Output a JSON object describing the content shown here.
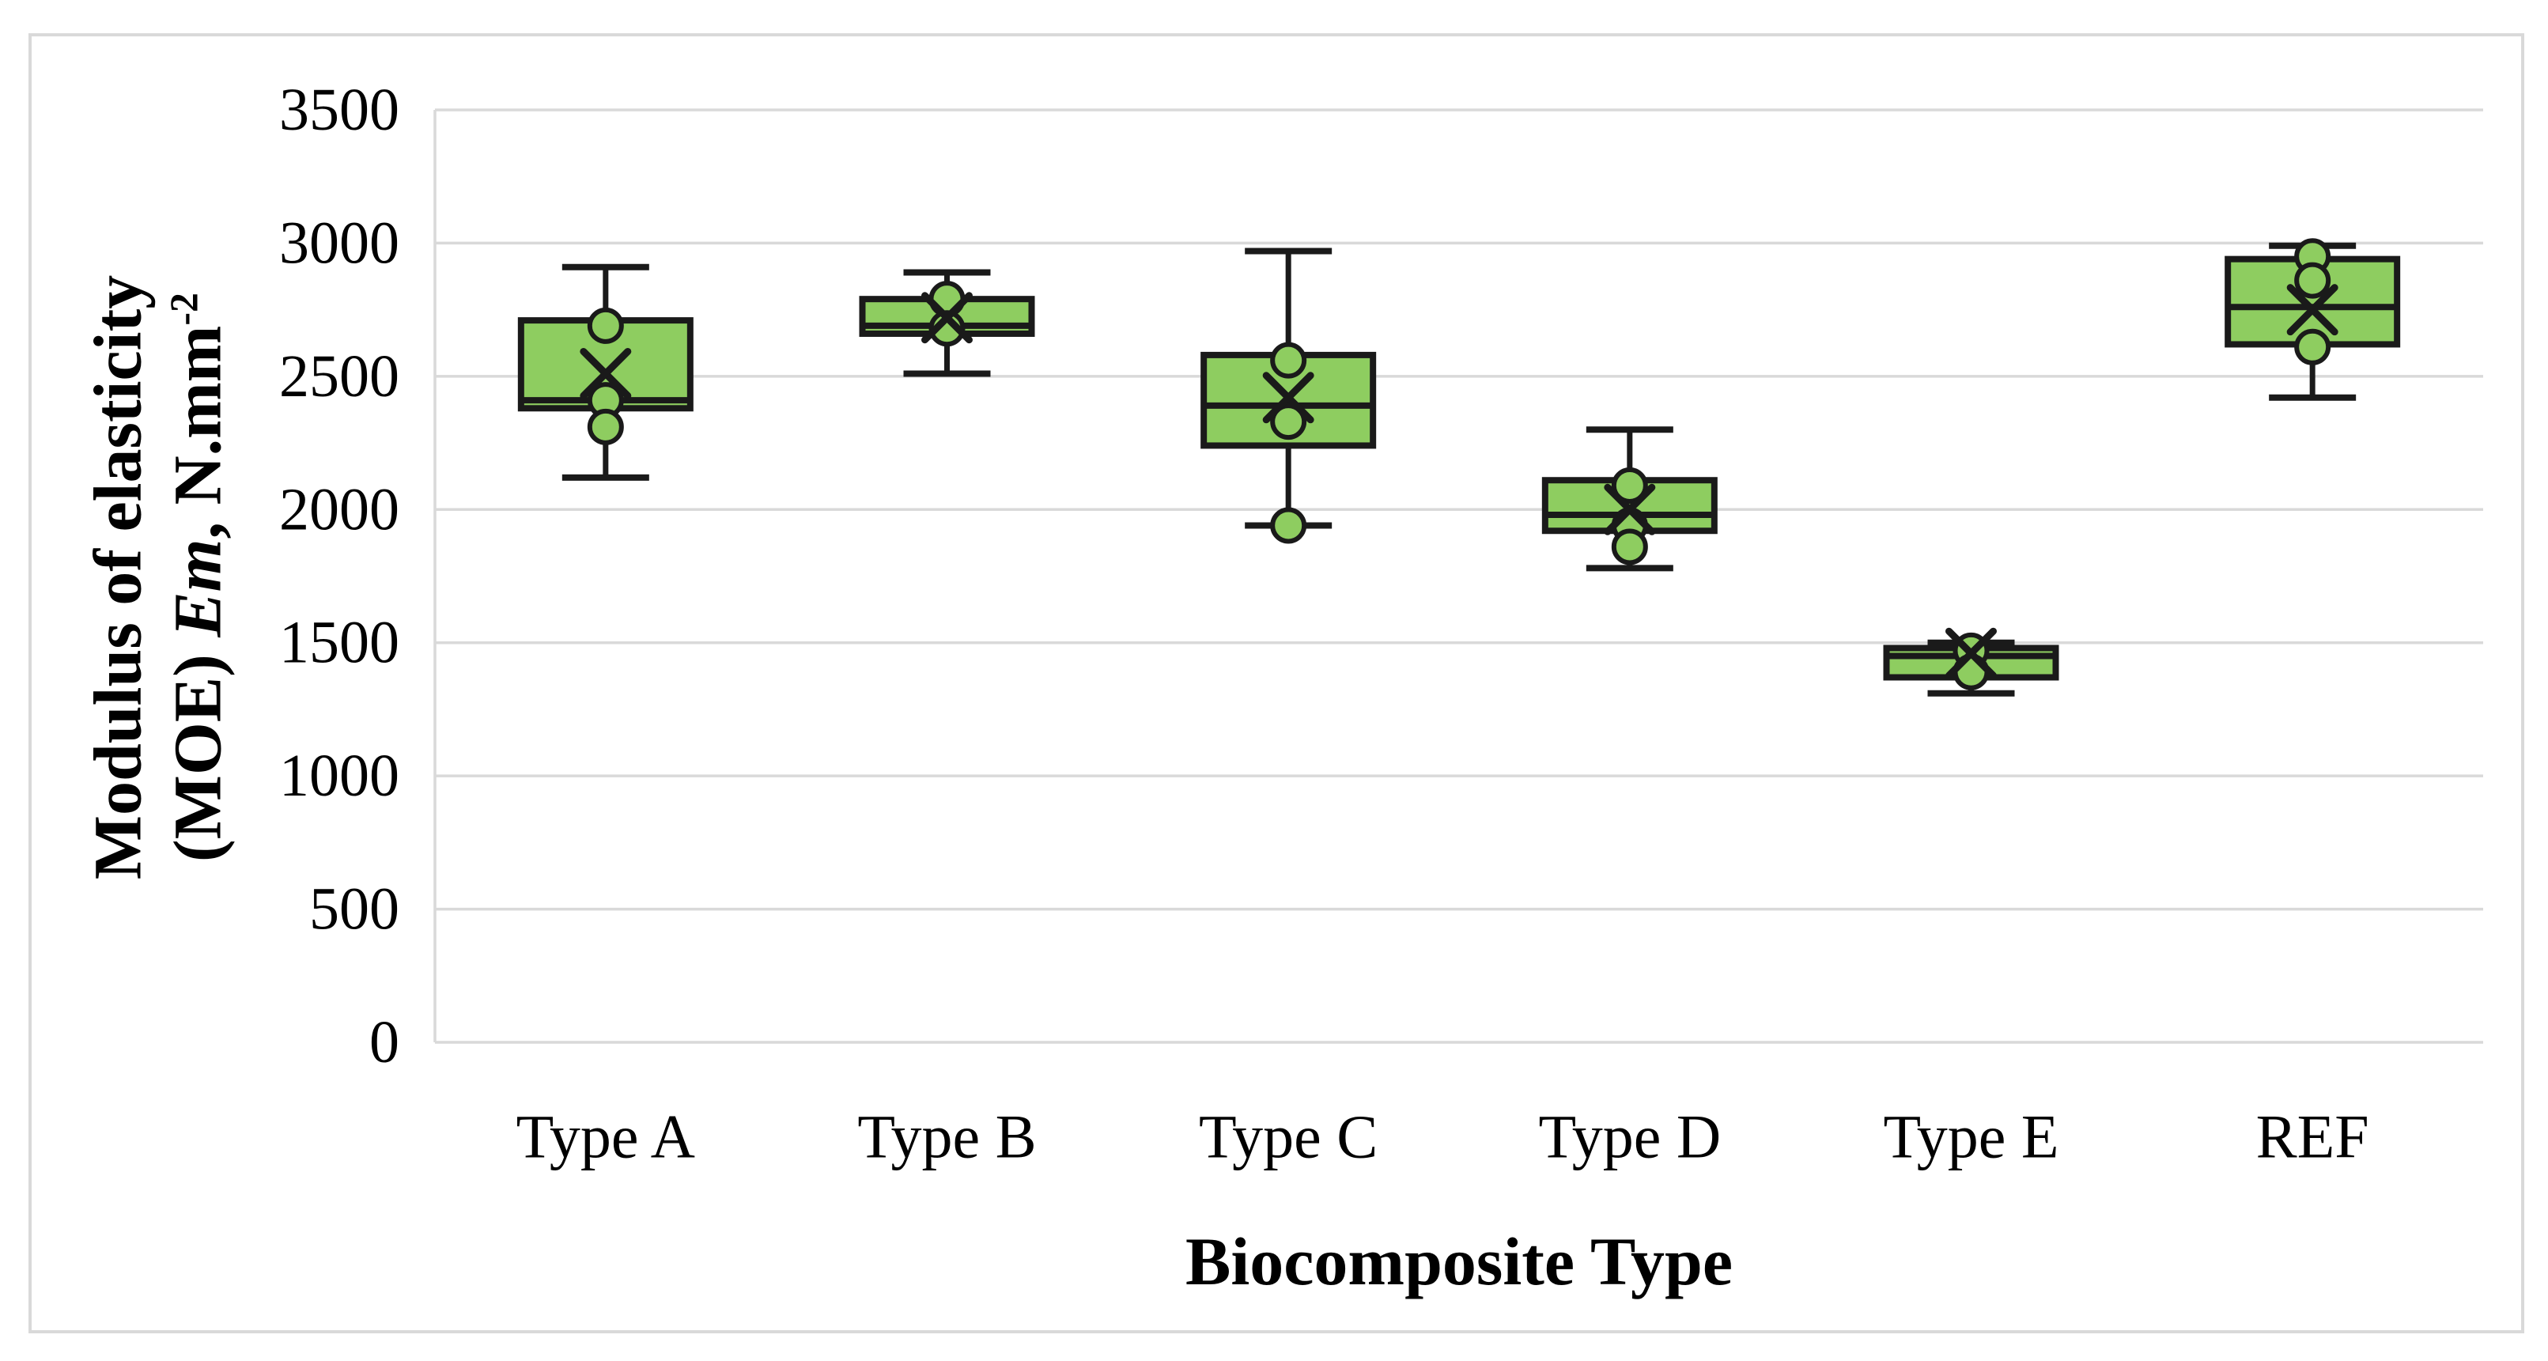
{
  "figure": {
    "background": "#ffffff",
    "border_color": "#d9d9d9"
  },
  "chart_data": {
    "type": "boxplot",
    "title": "",
    "xlabel": "Biocomposite Type",
    "ylabel_line1": "Modulus of elasticity",
    "ylabel_line2": {
      "prefix": "(MOE) ",
      "italic": "Em",
      "mid": ", N.mm",
      "sup": "-2"
    },
    "ylim": [
      0,
      3500
    ],
    "ytick_step": 500,
    "ytick_labels": [
      "0",
      "500",
      "1000",
      "1500",
      "2000",
      "2500",
      "3000",
      "3500"
    ],
    "grid": true,
    "legend": "none",
    "categories": [
      "Type A",
      "Type B",
      "Type C",
      "Type D",
      "Type E",
      "REF"
    ],
    "series": [
      {
        "label": "Type A",
        "whisker_low": 2120,
        "q1": 2380,
        "median": 2410,
        "q3": 2710,
        "whisker_high": 2910,
        "mean": 2510,
        "points": [
          2690,
          2410,
          2310
        ]
      },
      {
        "label": "Type B",
        "whisker_low": 2510,
        "q1": 2660,
        "median": 2690,
        "q3": 2790,
        "whisker_high": 2890,
        "mean": 2720,
        "points": [
          2790,
          2680
        ]
      },
      {
        "label": "Type C",
        "whisker_low": 1940,
        "q1": 2240,
        "median": 2390,
        "q3": 2580,
        "whisker_high": 2970,
        "mean": 2420,
        "points": [
          2560,
          2330,
          1940
        ]
      },
      {
        "label": "Type D",
        "whisker_low": 1780,
        "q1": 1920,
        "median": 1980,
        "q3": 2110,
        "whisker_high": 2300,
        "mean": 2000,
        "points": [
          2090,
          1940,
          1860
        ]
      },
      {
        "label": "Type E",
        "whisker_low": 1310,
        "q1": 1370,
        "median": 1450,
        "q3": 1480,
        "whisker_high": 1500,
        "mean": 1460,
        "points": [
          1470,
          1390
        ]
      },
      {
        "label": "REF",
        "whisker_low": 2420,
        "q1": 2620,
        "median": 2760,
        "q3": 2940,
        "whisker_high": 2990,
        "mean": 2750,
        "points": [
          2950,
          2860,
          2610
        ]
      }
    ],
    "style": {
      "box_fill": "#8ecd60",
      "box_stroke": "#1a1a1a",
      "grid_color": "#d9d9d9",
      "text_color": "#000000"
    }
  }
}
